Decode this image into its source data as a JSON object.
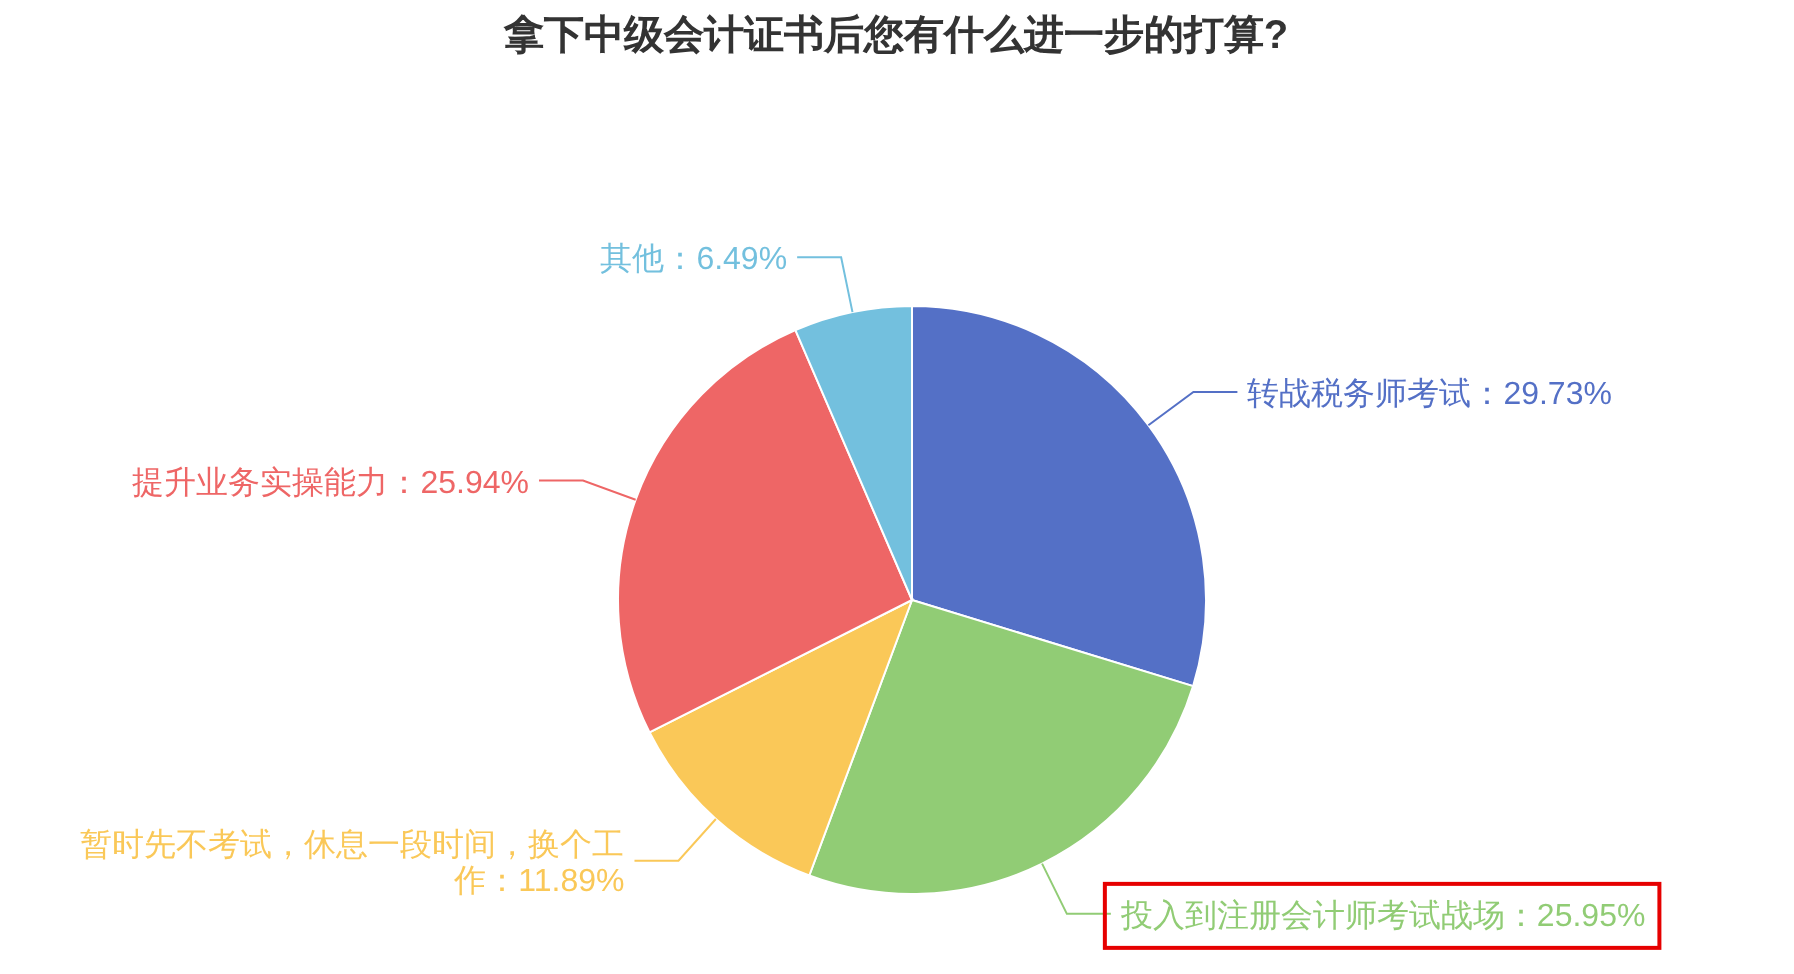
{
  "chart_data": {
    "type": "pie",
    "title": "拿下中级会计证书后您有什么进一步的打算?",
    "categories": [
      "转战税务师考试",
      "投入到注册会计师考试战场",
      "暂时先不考试，休息一段时间，换个工作",
      "提升业务实操能力",
      "其他"
    ],
    "values": [
      29.73,
      25.95,
      11.89,
      25.94,
      6.49
    ],
    "colors": [
      "#5470c6",
      "#91cc75",
      "#fac858",
      "#ee6666",
      "#73c0de"
    ],
    "value_labels": [
      "：29.73%",
      "：25.95%",
      "：11.89%",
      "：25.94%",
      "：6.49%"
    ]
  }
}
